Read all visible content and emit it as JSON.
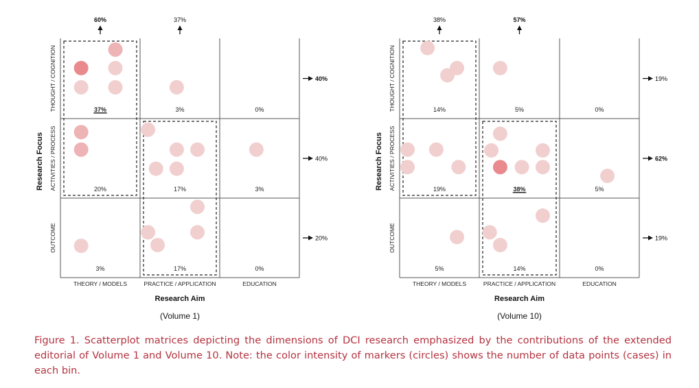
{
  "chart_data": [
    {
      "type": "scatter",
      "subtitle": "(Volume 1)",
      "xlabel": "Research Aim",
      "ylabel": "Research Focus",
      "x_categories": [
        "THEORY / MODELS",
        "PRACTICE / APPLICATION",
        "EDUCATION"
      ],
      "y_categories": [
        "THOUGHT / COGNITION",
        "ACTIVITIES / PROCESS",
        "OUTCOME"
      ],
      "column_totals": [
        "60%",
        "37%",
        ""
      ],
      "row_totals": [
        "40%",
        "40%",
        "20%"
      ],
      "cell_percents": [
        [
          "37%",
          "3%",
          "0%"
        ],
        [
          "20%",
          "17%",
          "3%"
        ],
        [
          "3%",
          "17%",
          "0%"
        ]
      ],
      "highlight_cells": [
        [
          0,
          0
        ]
      ],
      "bold_totals": {
        "columns": [
          0
        ],
        "rows": [
          0
        ]
      },
      "dashed_regions": [
        {
          "rows": [
            0,
            1
          ],
          "cols": [
            0
          ]
        },
        {
          "rows": [
            1,
            2
          ],
          "cols": [
            1
          ]
        }
      ],
      "points": [
        {
          "row": 0,
          "col": 0,
          "fx": 0.69,
          "fy": 0.14,
          "intensity": 2
        },
        {
          "row": 0,
          "col": 0,
          "fx": 0.26,
          "fy": 0.37,
          "intensity": 3
        },
        {
          "row": 0,
          "col": 0,
          "fx": 0.69,
          "fy": 0.37,
          "intensity": 1
        },
        {
          "row": 0,
          "col": 0,
          "fx": 0.26,
          "fy": 0.61,
          "intensity": 1
        },
        {
          "row": 0,
          "col": 0,
          "fx": 0.69,
          "fy": 0.61,
          "intensity": 1
        },
        {
          "row": 0,
          "col": 1,
          "fx": 0.46,
          "fy": 0.61,
          "intensity": 1
        },
        {
          "row": 1,
          "col": 0,
          "fx": 0.26,
          "fy": 0.17,
          "intensity": 2
        },
        {
          "row": 1,
          "col": 0,
          "fx": 0.26,
          "fy": 0.39,
          "intensity": 2
        },
        {
          "row": 1,
          "col": 1,
          "fx": 0.1,
          "fy": 0.14,
          "intensity": 1
        },
        {
          "row": 1,
          "col": 1,
          "fx": 0.46,
          "fy": 0.39,
          "intensity": 1
        },
        {
          "row": 1,
          "col": 1,
          "fx": 0.72,
          "fy": 0.39,
          "intensity": 1
        },
        {
          "row": 1,
          "col": 1,
          "fx": 0.2,
          "fy": 0.63,
          "intensity": 1
        },
        {
          "row": 1,
          "col": 1,
          "fx": 0.46,
          "fy": 0.63,
          "intensity": 1
        },
        {
          "row": 1,
          "col": 2,
          "fx": 0.46,
          "fy": 0.39,
          "intensity": 1
        },
        {
          "row": 2,
          "col": 0,
          "fx": 0.26,
          "fy": 0.6,
          "intensity": 1
        },
        {
          "row": 2,
          "col": 1,
          "fx": 0.72,
          "fy": 0.11,
          "intensity": 1
        },
        {
          "row": 2,
          "col": 1,
          "fx": 0.1,
          "fy": 0.43,
          "intensity": 1
        },
        {
          "row": 2,
          "col": 1,
          "fx": 0.72,
          "fy": 0.43,
          "intensity": 1
        },
        {
          "row": 2,
          "col": 1,
          "fx": 0.22,
          "fy": 0.59,
          "intensity": 1
        }
      ]
    },
    {
      "type": "scatter",
      "subtitle": "(Volume 10)",
      "xlabel": "Research Aim",
      "ylabel": "Research Focus",
      "x_categories": [
        "THEORY / MODELS",
        "PRACTICE / APPLICATION",
        "EDUCATION"
      ],
      "y_categories": [
        "THOUGHT / COGNITION",
        "ACTIVITIES / PROCESS",
        "OUTCOME"
      ],
      "column_totals": [
        "38%",
        "57%",
        ""
      ],
      "row_totals": [
        "19%",
        "62%",
        "19%"
      ],
      "cell_percents": [
        [
          "14%",
          "5%",
          "0%"
        ],
        [
          "19%",
          "38%",
          "5%"
        ],
        [
          "5%",
          "14%",
          "0%"
        ]
      ],
      "highlight_cells": [
        [
          1,
          1
        ]
      ],
      "bold_totals": {
        "columns": [
          1
        ],
        "rows": [
          1
        ]
      },
      "dashed_regions": [
        {
          "rows": [
            0,
            1
          ],
          "cols": [
            0
          ]
        },
        {
          "rows": [
            1,
            2
          ],
          "cols": [
            1
          ]
        }
      ],
      "points": [
        {
          "row": 0,
          "col": 0,
          "fx": 0.35,
          "fy": 0.12,
          "intensity": 1
        },
        {
          "row": 0,
          "col": 0,
          "fx": 0.72,
          "fy": 0.37,
          "intensity": 1
        },
        {
          "row": 0,
          "col": 0,
          "fx": 0.6,
          "fy": 0.46,
          "intensity": 1
        },
        {
          "row": 0,
          "col": 1,
          "fx": 0.26,
          "fy": 0.37,
          "intensity": 1
        },
        {
          "row": 1,
          "col": 0,
          "fx": 0.1,
          "fy": 0.39,
          "intensity": 1
        },
        {
          "row": 1,
          "col": 0,
          "fx": 0.46,
          "fy": 0.39,
          "intensity": 1
        },
        {
          "row": 1,
          "col": 0,
          "fx": 0.1,
          "fy": 0.61,
          "intensity": 1
        },
        {
          "row": 1,
          "col": 0,
          "fx": 0.74,
          "fy": 0.61,
          "intensity": 1
        },
        {
          "row": 1,
          "col": 1,
          "fx": 0.26,
          "fy": 0.19,
          "intensity": 1
        },
        {
          "row": 1,
          "col": 1,
          "fx": 0.15,
          "fy": 0.4,
          "intensity": 1
        },
        {
          "row": 1,
          "col": 1,
          "fx": 0.79,
          "fy": 0.4,
          "intensity": 1
        },
        {
          "row": 1,
          "col": 1,
          "fx": 0.26,
          "fy": 0.61,
          "intensity": 3
        },
        {
          "row": 1,
          "col": 1,
          "fx": 0.53,
          "fy": 0.61,
          "intensity": 1
        },
        {
          "row": 1,
          "col": 1,
          "fx": 0.79,
          "fy": 0.61,
          "intensity": 1
        },
        {
          "row": 1,
          "col": 2,
          "fx": 0.6,
          "fy": 0.72,
          "intensity": 1
        },
        {
          "row": 2,
          "col": 0,
          "fx": 0.72,
          "fy": 0.49,
          "intensity": 1
        },
        {
          "row": 2,
          "col": 1,
          "fx": 0.79,
          "fy": 0.22,
          "intensity": 1
        },
        {
          "row": 2,
          "col": 1,
          "fx": 0.13,
          "fy": 0.43,
          "intensity": 1
        },
        {
          "row": 2,
          "col": 1,
          "fx": 0.26,
          "fy": 0.59,
          "intensity": 1
        }
      ]
    }
  ],
  "caption": {
    "label": "Figure 1.",
    "text": "Scatterplot matrices depicting the dimensions of DCI research emphasized by the contributions of the extended editorial of Volume 1 and Volume 10. Note: the color intensity of markers (circles) shows the number of data points (cases) in each bin."
  },
  "colors": {
    "marker_light": "#f1cfcf",
    "marker_medium": "#edb3b5",
    "marker_dark": "#e98a8e",
    "grid_line": "#555555",
    "caption_red": "#b4323f"
  }
}
